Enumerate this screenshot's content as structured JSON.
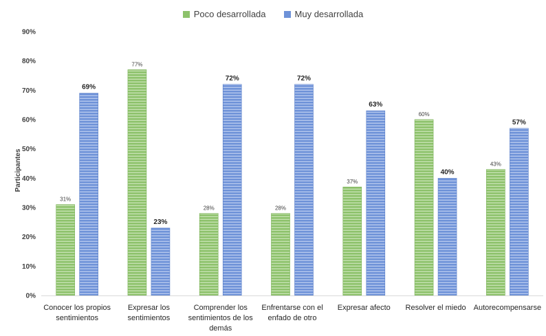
{
  "chart_data": {
    "type": "bar",
    "title": "",
    "xlabel": "",
    "ylabel": "Participantes",
    "ylim": [
      0,
      90
    ],
    "yticks": [
      "0%",
      "10%",
      "20%",
      "30%",
      "40%",
      "50%",
      "60%",
      "70%",
      "80%",
      "90%"
    ],
    "categories": [
      [
        "Conocer los propios",
        "sentimientos"
      ],
      [
        "Expresar los",
        "sentimientos"
      ],
      [
        "Comprender los",
        "sentimientos de los",
        "demás"
      ],
      [
        "Enfrentarse con el",
        "enfado de otro"
      ],
      [
        "Expresar afecto"
      ],
      [
        "Resolver el miedo"
      ],
      [
        "Autorecompensarse"
      ]
    ],
    "series": [
      {
        "name": "Poco desarrollada",
        "color": "#8dc26b",
        "values": [
          31,
          77,
          28,
          28,
          37,
          60,
          43
        ],
        "labels": [
          "31%",
          "77%",
          "28%",
          "28%",
          "37%",
          "60%",
          "43%"
        ]
      },
      {
        "name": "Muy desarrollada",
        "color": "#6e92d8",
        "values": [
          69,
          23,
          72,
          72,
          63,
          40,
          57
        ],
        "labels": [
          "69%",
          "23%",
          "72%",
          "72%",
          "63%",
          "40%",
          "57%"
        ]
      }
    ],
    "legend": "top-center",
    "grid": false
  }
}
